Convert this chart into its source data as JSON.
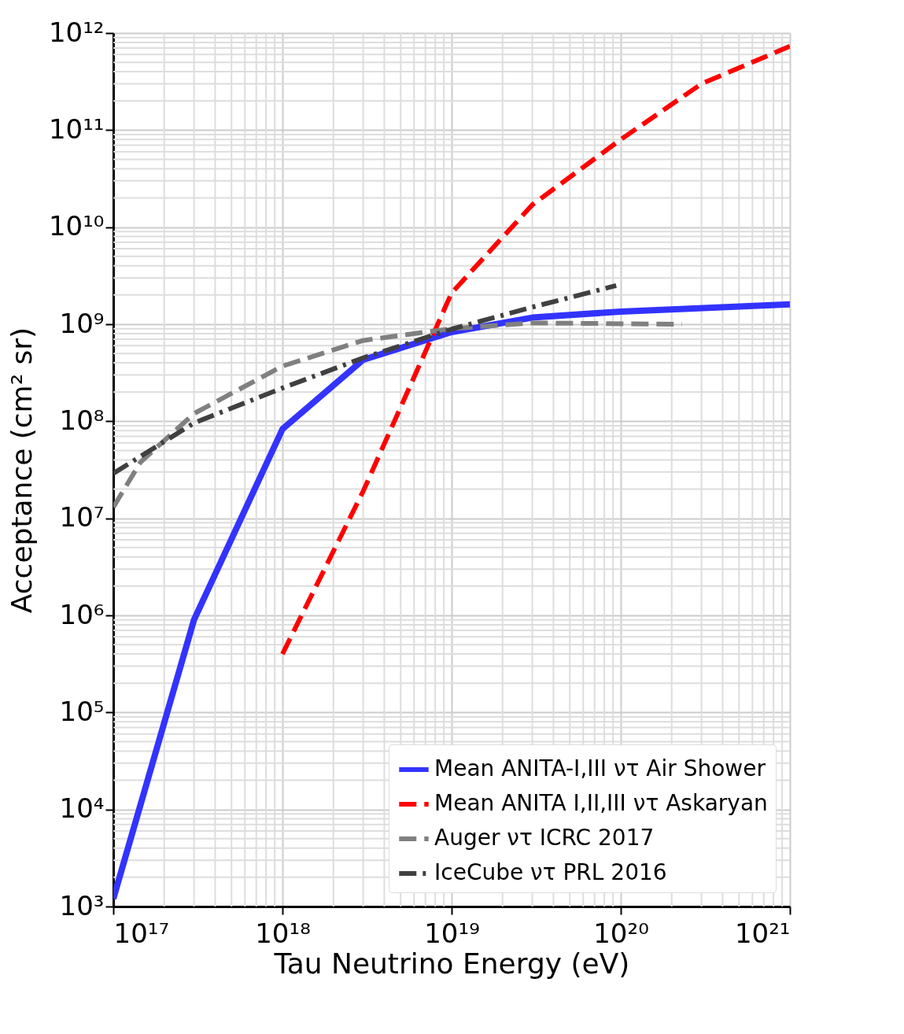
{
  "chart_data": {
    "type": "line",
    "xlabel": "Tau Neutrino Energy (eV)",
    "ylabel": "Acceptance (cm² sr)",
    "log": "xy",
    "grid": true,
    "legend": "bottom right",
    "xlim": [
      1e+17,
      1e+21
    ],
    "ylim": [
      1000.0,
      1000000000000.0
    ],
    "xticks": [
      {
        "value": 1e+17,
        "label": "10¹⁷"
      },
      {
        "value": 1e+18,
        "label": "10¹⁸"
      },
      {
        "value": 1e+19,
        "label": "10¹⁹"
      },
      {
        "value": 1e+20,
        "label": "10²⁰"
      },
      {
        "value": 1e+21,
        "label": "10²¹"
      }
    ],
    "yticks": [
      {
        "value": 1000.0,
        "label": "10³"
      },
      {
        "value": 10000.0,
        "label": "10⁴"
      },
      {
        "value": 100000.0,
        "label": "10⁵"
      },
      {
        "value": 1000000.0,
        "label": "10⁶"
      },
      {
        "value": 10000000.0,
        "label": "10⁷"
      },
      {
        "value": 100000000.0,
        "label": "10⁸"
      },
      {
        "value": 1000000000.0,
        "label": "10⁹"
      },
      {
        "value": 10000000000.0,
        "label": "10¹⁰"
      },
      {
        "value": 100000000000.0,
        "label": "10¹¹"
      },
      {
        "value": 1000000000000.0,
        "label": "10¹²"
      }
    ],
    "series": [
      {
        "name": "Mean ANITA-I,III ντ Air Shower",
        "color": "#3333ff",
        "line_style": "solid",
        "x": [
          1e+17,
          3e+17,
          1e+18,
          3e+18,
          1e+19,
          3e+19,
          1e+20,
          1e+21
        ],
        "values": [
          1200.0,
          900000.0,
          83000000.0,
          430000000.0,
          830000000.0,
          1170000000.0,
          1350000000.0,
          1600000000.0
        ]
      },
      {
        "name": "Mean ANITA I,II,III ντ Askaryan",
        "color": "#ff0000",
        "line_style": "dashed",
        "x": [
          1e+18,
          3e+18,
          1e+19,
          3e+19,
          1e+20,
          3e+20,
          1e+21
        ],
        "values": [
          400000.0,
          19000000.0,
          2100000000.0,
          17000000000.0,
          80000000000.0,
          300000000000.0,
          730000000000.0
        ]
      },
      {
        "name": "Auger ντ ICRC 2017",
        "color": "#808080",
        "line_style": "dashed",
        "x": [
          1e+17,
          1.45e+17,
          3e+17,
          1e+18,
          3e+18,
          1e+19,
          3e+19,
          2.3e+20
        ],
        "values": [
          13000000.0,
          38000000.0,
          120000000.0,
          370000000.0,
          680000000.0,
          900000000.0,
          1030000000.0,
          1000000000.0
        ]
      },
      {
        "name": "IceCube ντ PRL 2016",
        "color": "#404040",
        "line_style": "dashdot",
        "x": [
          1e+17,
          3e+17,
          1e+18,
          3e+18,
          1e+19,
          3e+19,
          9.4e+19
        ],
        "values": [
          29000000.0,
          96000000.0,
          220000000.0,
          450000000.0,
          890000000.0,
          1500000000.0,
          2500000000.0
        ]
      }
    ]
  }
}
